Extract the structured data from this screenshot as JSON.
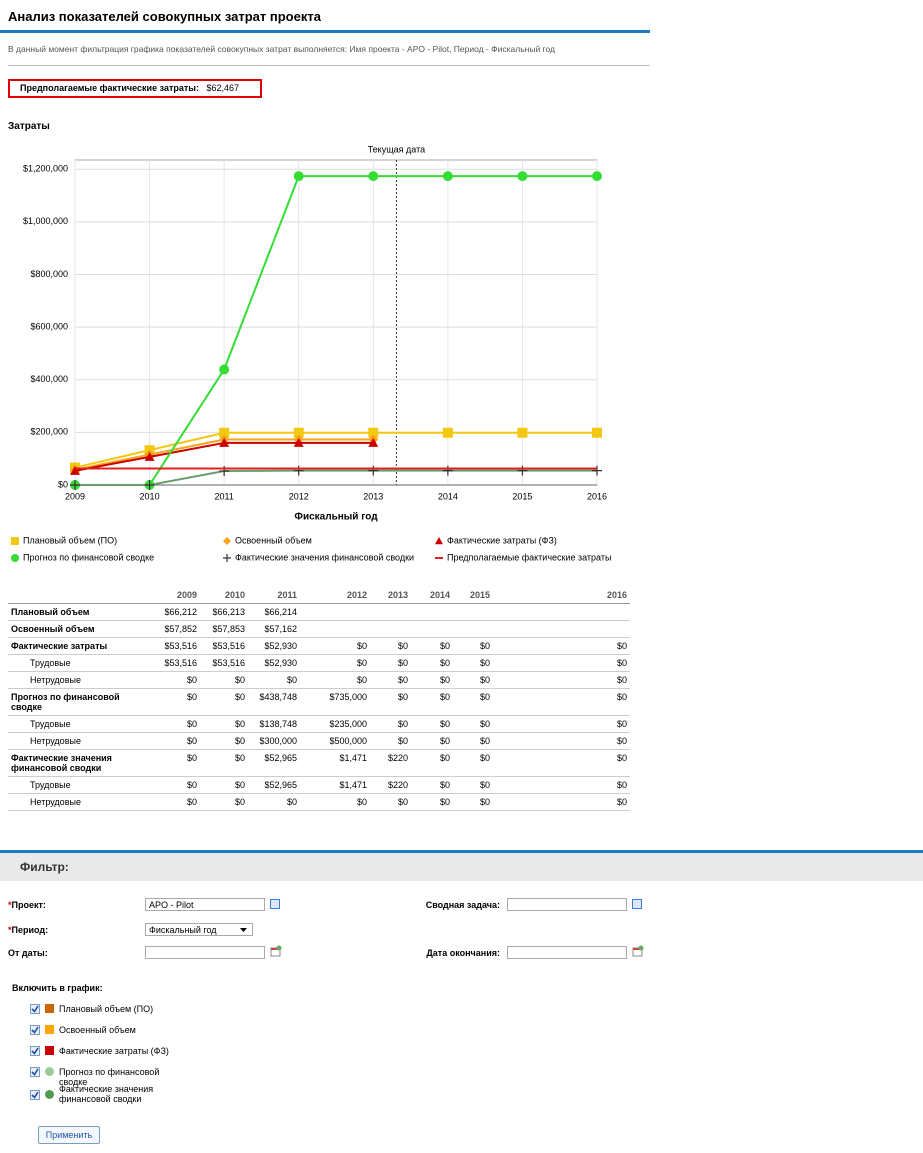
{
  "header": {
    "title": "Анализ показателей совокупных затрат проекта",
    "filter_note": "В данный момент фильтрация графика показателей совокупных затрат выполняется: Имя проекта - APO - Pilot, Период - Фискальный год",
    "estimate_label": "Предполагаемые фактические затраты:",
    "estimate_value": "$62,467",
    "section": "Затраты"
  },
  "chart_data": {
    "type": "line",
    "xlabel": "Фискальный год",
    "x": [
      2009,
      2010,
      2011,
      2012,
      2013,
      2014,
      2015,
      2016
    ],
    "xlim": [
      2009,
      2016
    ],
    "xticks": [
      2009,
      2010,
      2011,
      2012,
      2013,
      2014,
      2015,
      2016
    ],
    "ylim": [
      0,
      1235000
    ],
    "yticks": [
      {
        "value": 0,
        "label": "$0"
      },
      {
        "value": 200000,
        "label": "$200,000"
      },
      {
        "value": 400000,
        "label": "$400,000"
      },
      {
        "value": 600000,
        "label": "$600,000"
      },
      {
        "value": 800000,
        "label": "$800,000"
      },
      {
        "value": 1000000,
        "label": "$1,000,000"
      },
      {
        "value": 1200000,
        "label": "$1,200,000"
      }
    ],
    "grid": true,
    "annotation": {
      "label": "Текущая дата",
      "x": 2013.31
    },
    "series": [
      {
        "name": "Плановый объем (ПО)",
        "color": "#f2c811",
        "marker": "square",
        "values": [
          66212,
          132425,
          198639,
          198639,
          198639,
          198639,
          198639,
          198639
        ]
      },
      {
        "name": "Освоенный объем",
        "color": "#f5a31a",
        "marker": "diamond",
        "values": [
          57852,
          115705,
          172867,
          172867,
          172867,
          null,
          null,
          null
        ]
      },
      {
        "name": "Фактические затраты (ФЗ)",
        "color": "#cc0000",
        "marker": "triangle",
        "values": [
          53516,
          107032,
          159962,
          159962,
          159962,
          null,
          null,
          null
        ]
      },
      {
        "name": "Прогноз по финансовой сводке",
        "color": "#33dd33",
        "marker": "circle",
        "values": [
          0,
          0,
          438748,
          1173748,
          1173748,
          1173748,
          1173748,
          1173748
        ]
      },
      {
        "name": "Фактические значения финансовой сводки",
        "color": "#6a9f6a",
        "marker_color": "#333333",
        "marker": "plus",
        "values": [
          0,
          0,
          52965,
          54436,
          54656,
          54656,
          54656,
          54656
        ]
      },
      {
        "name": "Предполагаемые фактические затраты",
        "color": "#e02020",
        "marker": "line",
        "values": [
          62467,
          62467,
          62467,
          62467,
          62467,
          62467,
          62467,
          62467
        ]
      }
    ]
  },
  "table": {
    "columns": [
      2009,
      2010,
      2011,
      2012,
      2013,
      2014,
      2015,
      2016
    ],
    "rows": [
      {
        "label": "Плановый объем",
        "cells": [
          "$66,212",
          "$66,213",
          "$66,214",
          null,
          null,
          null,
          null,
          null
        ]
      },
      {
        "label": "Освоенный объем",
        "cells": [
          "$57,852",
          "$57,853",
          "$57,162",
          null,
          null,
          null,
          null,
          null
        ]
      },
      {
        "label": "Фактические затраты",
        "cells": [
          "$53,516",
          "$53,516",
          "$52,930",
          "$0",
          "$0",
          "$0",
          "$0",
          "$0"
        ],
        "sub": [
          {
            "label": "Трудовые",
            "cells": [
              "$53,516",
              "$53,516",
              "$52,930",
              "$0",
              "$0",
              "$0",
              "$0",
              "$0"
            ]
          },
          {
            "label": "Нетрудовые",
            "cells": [
              "$0",
              "$0",
              "$0",
              "$0",
              "$0",
              "$0",
              "$0",
              "$0"
            ]
          }
        ]
      },
      {
        "label": "Прогноз по финансовой сводке",
        "cells": [
          "$0",
          "$0",
          "$438,748",
          "$735,000",
          "$0",
          "$0",
          "$0",
          "$0"
        ],
        "sub": [
          {
            "label": "Трудовые",
            "cells": [
              "$0",
              "$0",
              "$138,748",
              "$235,000",
              "$0",
              "$0",
              "$0",
              "$0"
            ]
          },
          {
            "label": "Нетрудовые",
            "cells": [
              "$0",
              "$0",
              "$300,000",
              "$500,000",
              "$0",
              "$0",
              "$0",
              "$0"
            ]
          }
        ]
      },
      {
        "label": "Фактические значения финансовой сводки",
        "cells": [
          "$0",
          "$0",
          "$52,965",
          "$1,471",
          "$220",
          "$0",
          "$0",
          "$0"
        ],
        "sub": [
          {
            "label": "Трудовые",
            "cells": [
              "$0",
              "$0",
              "$52,965",
              "$1,471",
              "$220",
              "$0",
              "$0",
              "$0"
            ]
          },
          {
            "label": "Нетрудовые",
            "cells": [
              "$0",
              "$0",
              "$0",
              "$0",
              "$0",
              "$0",
              "$0",
              "$0"
            ]
          }
        ]
      }
    ]
  },
  "filter": {
    "title": "Фильтр:",
    "required_mark": "*",
    "project_label": "Проект:",
    "project_value": "APO - Pilot",
    "summary_label": "Сводная задача:",
    "period_label": "Период:",
    "period_value": "Фискальный год",
    "from_label": "От даты:",
    "to_label": "Дата окончания:",
    "include_label": "Включить в график:",
    "include": [
      {
        "label": "Плановый объем (ПО)",
        "color": "#cc6600",
        "icon": "square"
      },
      {
        "label": "Освоенный объем",
        "color": "#ffa500",
        "icon": "square"
      },
      {
        "label": "Фактические затраты (ФЗ)",
        "color": "#cc0000",
        "icon": "square"
      },
      {
        "label": "Прогноз по финансовой сводке",
        "color": "#99cc99",
        "icon": "circle"
      },
      {
        "label": "Фактические значения финансовой сводки",
        "color": "#559955",
        "icon": "circle"
      }
    ],
    "apply": "Применить"
  }
}
